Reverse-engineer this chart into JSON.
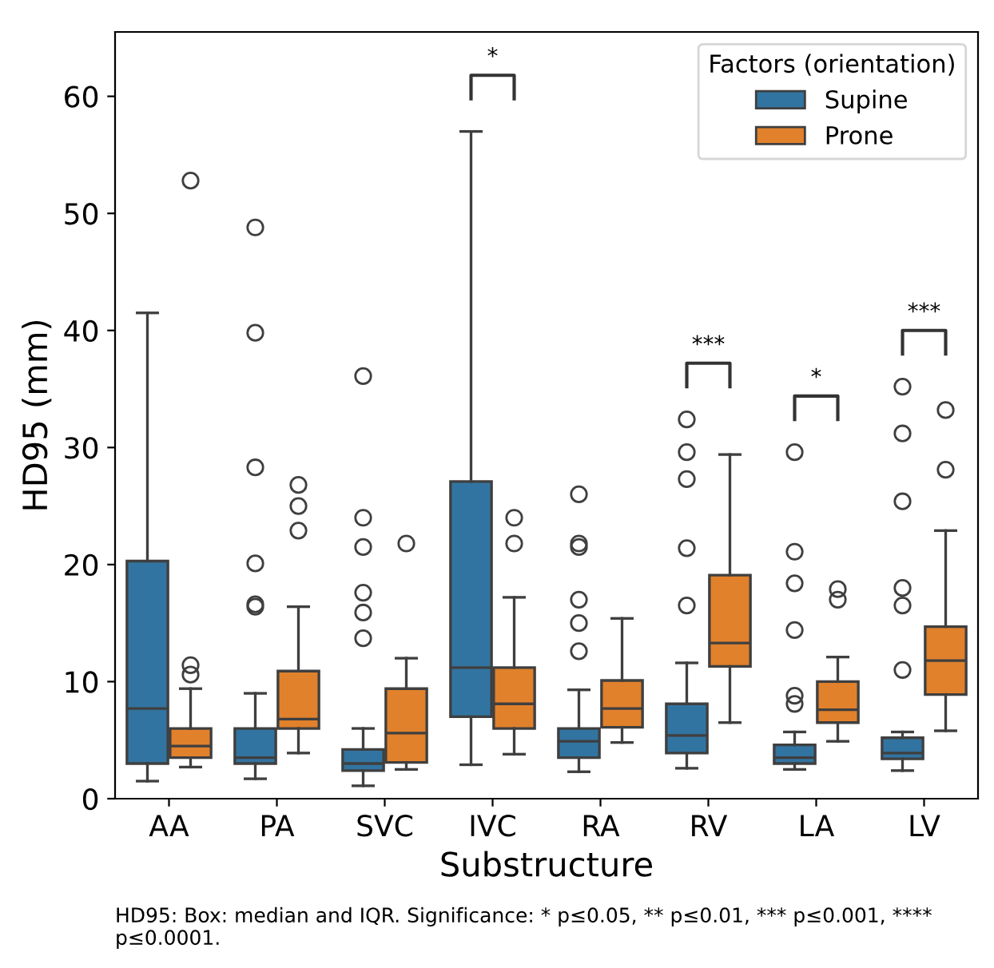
{
  "chart_data": {
    "type": "box",
    "xlabel": "Substructure",
    "ylabel": "HD95 (mm)",
    "categories": [
      "AA",
      "PA",
      "SVC",
      "IVC",
      "RA",
      "RV",
      "LA",
      "LV"
    ],
    "ylim": [
      0,
      65.5
    ],
    "yticks": [
      0,
      10,
      20,
      30,
      40,
      50,
      60
    ],
    "grid": false,
    "legend": "top right",
    "legend_title": "Factors (orientation)",
    "series": [
      {
        "name": "Supine",
        "color": "#3274a1",
        "boxes": [
          {
            "low": 1.5,
            "q1": 3.0,
            "median": 7.7,
            "q3": 20.3,
            "high": 41.5
          },
          {
            "low": 1.7,
            "q1": 3.0,
            "median": 3.5,
            "q3": 6.0,
            "high": 9.0,
            "outliers": [
              16.4,
              16.6,
              20.1,
              28.3,
              39.8,
              48.8
            ]
          },
          {
            "low": 1.1,
            "q1": 2.4,
            "median": 3.0,
            "q3": 4.2,
            "high": 6.0,
            "outliers": [
              13.7,
              15.9,
              17.6,
              21.5,
              24.0,
              36.1
            ]
          },
          {
            "low": 2.9,
            "q1": 7.0,
            "median": 11.2,
            "q3": 27.1,
            "high": 57.0
          },
          {
            "low": 2.3,
            "q1": 3.5,
            "median": 4.9,
            "q3": 6.0,
            "high": 9.3,
            "outliers": [
              12.6,
              15.0,
              17.0,
              21.5,
              21.8,
              26.0
            ]
          },
          {
            "low": 2.6,
            "q1": 3.9,
            "median": 5.4,
            "q3": 8.1,
            "high": 11.6,
            "outliers": [
              16.5,
              21.4,
              27.3,
              29.6,
              32.4
            ]
          },
          {
            "low": 2.5,
            "q1": 3.0,
            "median": 3.5,
            "q3": 4.6,
            "high": 5.7,
            "outliers": [
              8.1,
              8.8,
              14.4,
              18.4,
              21.1,
              29.6
            ]
          },
          {
            "low": 2.4,
            "q1": 3.4,
            "median": 3.9,
            "q3": 5.2,
            "high": 5.7,
            "outliers": [
              11.0,
              16.5,
              18.0,
              25.4,
              31.2,
              35.2
            ]
          }
        ]
      },
      {
        "name": "Prone",
        "color": "#e1812c",
        "boxes": [
          {
            "low": 2.7,
            "q1": 3.5,
            "median": 4.5,
            "q3": 6.0,
            "high": 9.4,
            "outliers": [
              10.6,
              11.4,
              52.8
            ]
          },
          {
            "low": 3.9,
            "q1": 6.0,
            "median": 6.8,
            "q3": 10.9,
            "high": 16.4,
            "outliers": [
              22.9,
              25.0,
              26.8
            ]
          },
          {
            "low": 2.5,
            "q1": 3.1,
            "median": 5.6,
            "q3": 9.4,
            "high": 12.0,
            "outliers": [
              21.8
            ]
          },
          {
            "low": 3.8,
            "q1": 6.0,
            "median": 8.1,
            "q3": 11.2,
            "high": 17.2,
            "outliers": [
              21.8,
              24.0
            ]
          },
          {
            "low": 4.8,
            "q1": 6.1,
            "median": 7.7,
            "q3": 10.1,
            "high": 15.4
          },
          {
            "low": 6.5,
            "q1": 11.3,
            "median": 13.3,
            "q3": 19.1,
            "high": 29.4
          },
          {
            "low": 4.9,
            "q1": 6.5,
            "median": 7.6,
            "q3": 10.0,
            "high": 12.1,
            "outliers": [
              17.0,
              17.9
            ]
          },
          {
            "low": 5.8,
            "q1": 8.9,
            "median": 11.8,
            "q3": 14.7,
            "high": 22.9,
            "outliers": [
              28.1,
              33.2
            ]
          }
        ]
      }
    ],
    "annotations": [
      "*",
      "***",
      "*",
      "***",
      "HD95: Box: median and IQR. Significance: * p≤0.05, ** p≤0.01, *** p≤0.001, **** p≤0.0001."
    ]
  }
}
